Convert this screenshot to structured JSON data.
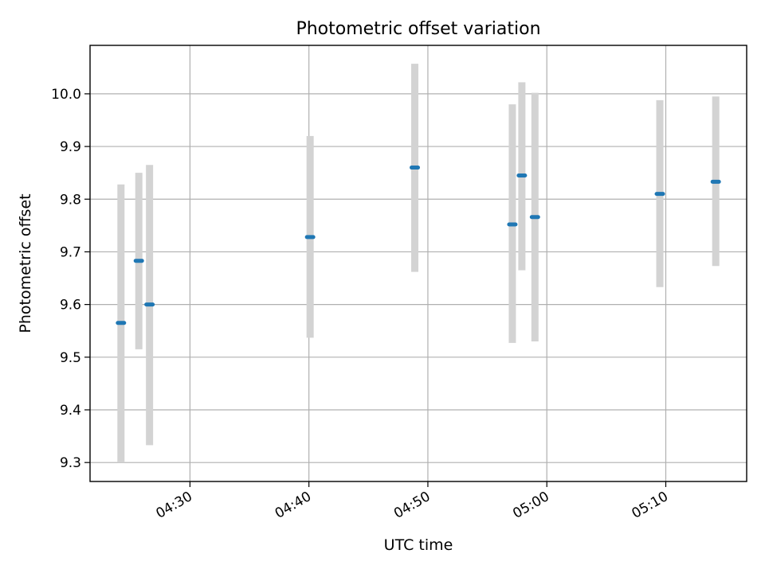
{
  "chart_data": {
    "type": "scatter",
    "title": "Photometric offset variation",
    "xlabel": "UTC time",
    "ylabel": "Photometric offset",
    "x_unit": "minutes after 04:00",
    "xlim": [
      21.6,
      76.8
    ],
    "ylim": [
      9.264,
      10.092
    ],
    "x_ticks": [
      {
        "value": 30,
        "label": "04:30"
      },
      {
        "value": 40,
        "label": "04:40"
      },
      {
        "value": 50,
        "label": "04:50"
      },
      {
        "value": 60,
        "label": "05:00"
      },
      {
        "value": 70,
        "label": "05:10"
      }
    ],
    "y_ticks": [
      {
        "value": 9.3,
        "label": "9.3"
      },
      {
        "value": 9.4,
        "label": "9.4"
      },
      {
        "value": 9.5,
        "label": "9.5"
      },
      {
        "value": 9.6,
        "label": "9.6"
      },
      {
        "value": 9.7,
        "label": "9.7"
      },
      {
        "value": 9.8,
        "label": "9.8"
      },
      {
        "value": 9.9,
        "label": "9.9"
      },
      {
        "value": 10.0,
        "label": "10.0"
      }
    ],
    "grid": true,
    "series": [
      {
        "name": "offset",
        "marker_color": "#1f77b4",
        "errorbar_color": "#d3d3d3",
        "points": [
          {
            "x": 24.2,
            "y": 9.565,
            "lo": 9.3,
            "hi": 9.828
          },
          {
            "x": 25.7,
            "y": 9.683,
            "lo": 9.515,
            "hi": 9.85
          },
          {
            "x": 26.6,
            "y": 9.6,
            "lo": 9.333,
            "hi": 9.865
          },
          {
            "x": 40.1,
            "y": 9.728,
            "lo": 9.537,
            "hi": 9.92
          },
          {
            "x": 48.9,
            "y": 9.86,
            "lo": 9.662,
            "hi": 10.057
          },
          {
            "x": 57.1,
            "y": 9.752,
            "lo": 9.527,
            "hi": 9.98
          },
          {
            "x": 57.9,
            "y": 9.845,
            "lo": 9.665,
            "hi": 10.022
          },
          {
            "x": 59.0,
            "y": 9.766,
            "lo": 9.53,
            "hi": 10.002
          },
          {
            "x": 69.5,
            "y": 9.81,
            "lo": 9.633,
            "hi": 9.988
          },
          {
            "x": 74.2,
            "y": 9.833,
            "lo": 9.673,
            "hi": 9.995
          }
        ]
      }
    ]
  }
}
